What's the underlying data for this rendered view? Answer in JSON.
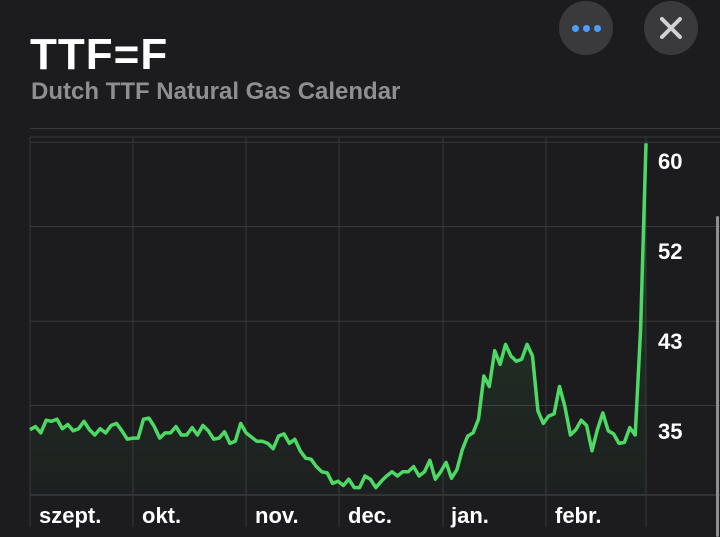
{
  "header": {
    "title": "TTF=F",
    "subtitle": "Dutch TTF Natural Gas Calendar"
  },
  "buttons": {
    "more": "more-icon",
    "close": "close-icon"
  },
  "colors": {
    "line": "#4cd964",
    "background": "#1c1c1e",
    "accent": "#4a9eff"
  },
  "chart_data": {
    "type": "line",
    "x_tick_labels": [
      "szept.",
      "okt.",
      "nov.",
      "dec.",
      "jan.",
      "febr."
    ],
    "y_ticks": [
      35,
      43,
      52,
      60
    ],
    "y_tick_labels": [
      "35",
      "43",
      "52",
      "60"
    ],
    "ylim": [
      26.5,
      60.5
    ],
    "grid": true,
    "values": [
      32.7,
      33.0,
      32.4,
      33.6,
      33.5,
      33.7,
      32.8,
      33.2,
      32.6,
      32.8,
      33.5,
      32.7,
      32.2,
      32.8,
      32.4,
      33.1,
      33.3,
      32.6,
      31.8,
      31.9,
      31.9,
      33.7,
      33.8,
      33.0,
      31.9,
      32.4,
      32.4,
      33.0,
      32.2,
      32.2,
      32.9,
      32.2,
      33.1,
      32.6,
      31.8,
      31.9,
      32.5,
      31.4,
      31.6,
      33.3,
      32.4,
      32.0,
      31.6,
      31.6,
      31.4,
      30.9,
      32.1,
      32.3,
      31.4,
      31.8,
      30.7,
      30.0,
      29.9,
      29.2,
      28.7,
      28.6,
      27.6,
      27.8,
      27.4,
      28.0,
      27.2,
      27.2,
      28.3,
      28.0,
      27.2,
      27.8,
      28.3,
      28.7,
      28.3,
      28.7,
      28.7,
      29.2,
      28.3,
      28.7,
      29.8,
      28.0,
      28.7,
      29.6,
      28.1,
      28.9,
      30.8,
      32.1,
      32.4,
      33.7,
      37.8,
      36.8,
      40.2,
      38.9,
      40.8,
      39.7,
      39.2,
      39.4,
      40.8,
      39.7,
      34.5,
      33.3,
      34.0,
      34.2,
      36.8,
      34.9,
      32.2,
      32.7,
      33.6,
      33.1,
      30.7,
      32.7,
      34.3,
      32.6,
      32.3,
      31.4,
      31.5,
      32.9,
      32.2,
      42.2,
      59.9
    ]
  }
}
